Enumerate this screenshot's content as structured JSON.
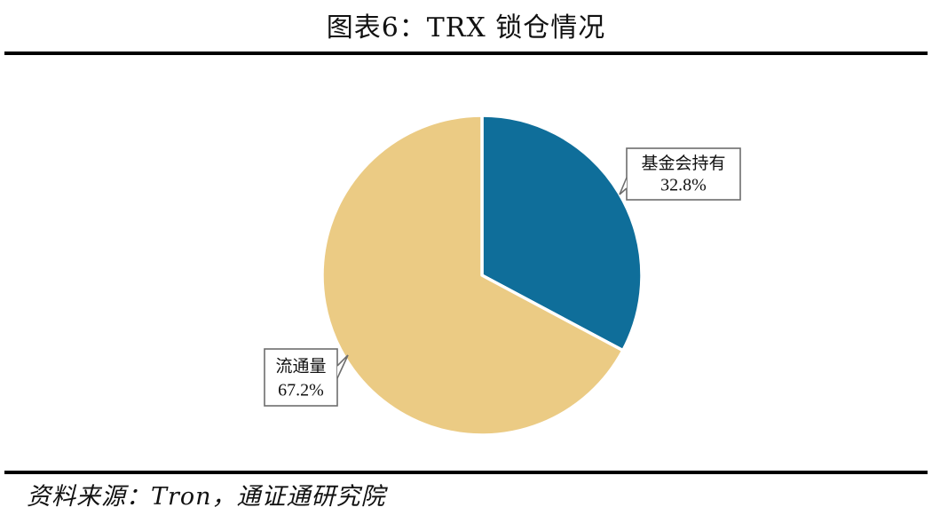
{
  "figure": {
    "title": "图表6：TRX 锁仓情况",
    "source": "资料来源：Tron，通证通研究院"
  },
  "chart_data": {
    "type": "pie",
    "title": "图表6：TRX 锁仓情况",
    "slices": [
      {
        "label": "基金会持有",
        "value": 32.8,
        "value_label": "32.8%",
        "color": "#0F6E9A"
      },
      {
        "label": "流通量",
        "value": 67.2,
        "value_label": "67.2%",
        "color": "#EBCB84"
      }
    ],
    "start_angle": "12 o'clock",
    "direction": "clockwise",
    "legend": "none",
    "data_labels": "callouts"
  }
}
